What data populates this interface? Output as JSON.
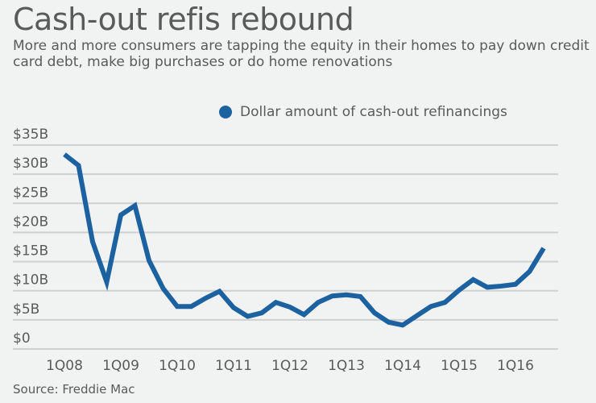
{
  "title": "Cash-out refis rebound",
  "subtitle": "More and more consumers are tapping the equity in their homes to pay down credit card debt, make big purchases or do home renovations",
  "source": "Source: Freddie Mac",
  "colors": {
    "line": "#1c62a0",
    "grid": "#cfd0d0",
    "text": "#5a5a5a",
    "background": "#f1f2f2"
  },
  "chart_data": {
    "type": "line",
    "title": "Cash-out refis rebound",
    "xlabel": "",
    "ylabel": "",
    "ylim": [
      0,
      35
    ],
    "grid": true,
    "legend_position": "top-right",
    "y_ticks": [
      {
        "value": 0,
        "label": "$0"
      },
      {
        "value": 5,
        "label": "$5B"
      },
      {
        "value": 10,
        "label": "$10B"
      },
      {
        "value": 15,
        "label": "$15B"
      },
      {
        "value": 20,
        "label": "$20B"
      },
      {
        "value": 25,
        "label": "$25B"
      },
      {
        "value": 30,
        "label": "$30B"
      },
      {
        "value": 35,
        "label": "$35B"
      }
    ],
    "x_ticks": [
      {
        "index": 0,
        "label": "1Q08"
      },
      {
        "index": 4,
        "label": "1Q09"
      },
      {
        "index": 8,
        "label": "1Q10"
      },
      {
        "index": 12,
        "label": "1Q11"
      },
      {
        "index": 16,
        "label": "1Q12"
      },
      {
        "index": 20,
        "label": "1Q13"
      },
      {
        "index": 24,
        "label": "1Q14"
      },
      {
        "index": 28,
        "label": "1Q15"
      },
      {
        "index": 32,
        "label": "1Q16"
      }
    ],
    "series": [
      {
        "name": "Dollar amount of cash-out refinancings",
        "unit": "billions USD",
        "x": [
          "1Q08",
          "2Q08",
          "3Q08",
          "4Q08",
          "1Q09",
          "2Q09",
          "3Q09",
          "4Q09",
          "1Q10",
          "2Q10",
          "3Q10",
          "4Q10",
          "1Q11",
          "2Q11",
          "3Q11",
          "4Q11",
          "1Q12",
          "2Q12",
          "3Q12",
          "4Q12",
          "1Q13",
          "2Q13",
          "3Q13",
          "4Q13",
          "1Q14",
          "2Q14",
          "3Q14",
          "4Q14",
          "1Q15",
          "2Q15",
          "3Q15",
          "4Q15",
          "1Q16",
          "2Q16",
          "3Q16"
        ],
        "values": [
          33.4,
          31.5,
          18.4,
          11.5,
          23.0,
          24.6,
          15.2,
          10.4,
          7.3,
          7.3,
          8.7,
          9.9,
          7.1,
          5.6,
          6.2,
          8.0,
          7.2,
          5.9,
          8.0,
          9.1,
          9.3,
          9.0,
          6.2,
          4.6,
          4.1,
          5.7,
          7.3,
          8.0,
          10.1,
          11.9,
          10.6,
          10.8,
          11.1,
          13.3,
          17.3
        ]
      }
    ]
  }
}
